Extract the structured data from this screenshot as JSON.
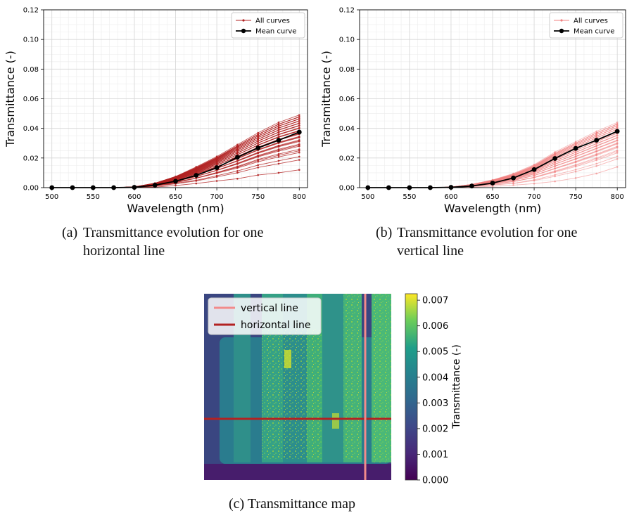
{
  "subplots": [
    {
      "id": "a",
      "caption_tag": "(a)",
      "caption_line1": "Transmittance evolution for one",
      "caption_line2": "horizontal line",
      "style": "dark"
    },
    {
      "id": "b",
      "caption_tag": "(b)",
      "caption_line1": "Transmittance evolution for one",
      "caption_line2": "vertical line",
      "style": "light"
    }
  ],
  "map": {
    "caption": "(c) Transmittance map",
    "legend_vertical": "vertical line",
    "legend_horizontal": "horizontal line",
    "colorbar_label": "Transmittance (-)",
    "colorbar_ticks": [
      "0.000",
      "0.001",
      "0.002",
      "0.003",
      "0.004",
      "0.005",
      "0.006",
      "0.007"
    ],
    "colors": {
      "vertical_line": "#f28b8b",
      "horizontal_line": "#b22222"
    }
  },
  "chart_data": [
    {
      "type": "line",
      "xlabel": "Wavelength (nm)",
      "ylabel": "Transmittance (-)",
      "xlim": [
        490,
        810
      ],
      "ylim": [
        0,
        0.12
      ],
      "xticks": [
        500,
        550,
        600,
        650,
        700,
        750,
        800
      ],
      "yticks": [
        "0.00",
        "0.02",
        "0.04",
        "0.06",
        "0.08",
        "0.10",
        "0.12"
      ],
      "grid": true,
      "legend": "top-right",
      "x": [
        500,
        525,
        550,
        575,
        600,
        625,
        650,
        675,
        700,
        725,
        750,
        775,
        800
      ],
      "series": [
        {
          "name": "All curves",
          "color": "#b22222",
          "envelope_upper": [
            0,
            0,
            0,
            0,
            0.0005,
            0.003,
            0.0075,
            0.014,
            0.021,
            0.029,
            0.037,
            0.044,
            0.049
          ],
          "envelope_lower": [
            0,
            0,
            0,
            0,
            0,
            0.0004,
            0.0014,
            0.0028,
            0.0045,
            0.006,
            0.0085,
            0.01,
            0.012
          ]
        },
        {
          "name": "Mean curve",
          "color": "#000000",
          "values": [
            0,
            0,
            0,
            0,
            0.0002,
            0.0017,
            0.0043,
            0.0083,
            0.0135,
            0.0205,
            0.0268,
            0.032,
            0.0375
          ]
        }
      ]
    },
    {
      "type": "line",
      "xlabel": "Wavelength (nm)",
      "ylabel": "Transmittance (-)",
      "xlim": [
        490,
        810
      ],
      "ylim": [
        0,
        0.12
      ],
      "xticks": [
        500,
        550,
        600,
        650,
        700,
        750,
        800
      ],
      "yticks": [
        "0.00",
        "0.02",
        "0.04",
        "0.06",
        "0.08",
        "0.10",
        "0.12"
      ],
      "grid": true,
      "legend": "top-right",
      "x": [
        500,
        525,
        550,
        575,
        600,
        625,
        650,
        675,
        700,
        725,
        750,
        775,
        800
      ],
      "series": [
        {
          "name": "All curves",
          "color": "#f08080",
          "envelope_upper": [
            0,
            0,
            0,
            0,
            0.0004,
            0.0022,
            0.0052,
            0.0095,
            0.0155,
            0.024,
            0.031,
            0.038,
            0.044
          ],
          "envelope_lower": [
            0,
            0,
            0,
            0,
            0,
            0.0003,
            0.0009,
            0.0017,
            0.0027,
            0.0042,
            0.0065,
            0.0095,
            0.014
          ]
        },
        {
          "name": "Mean curve",
          "color": "#000000",
          "values": [
            0,
            0,
            0,
            0,
            0.0002,
            0.0011,
            0.0031,
            0.0065,
            0.0122,
            0.0197,
            0.0265,
            0.032,
            0.038
          ]
        }
      ]
    }
  ]
}
